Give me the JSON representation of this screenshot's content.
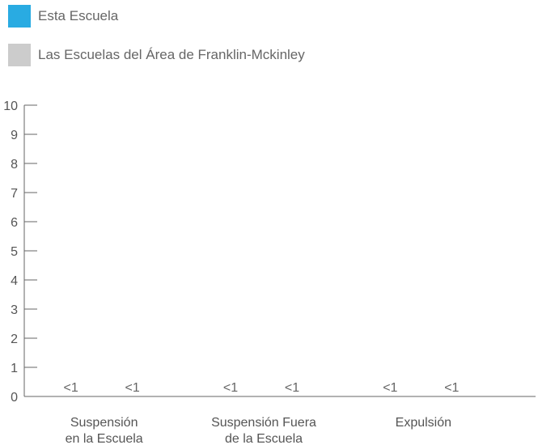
{
  "legend": [
    {
      "label": "Esta Escuela",
      "color": "#29abe2"
    },
    {
      "label": "Las Escuelas del Área de Franklin-Mckinley",
      "color": "#cccccc"
    }
  ],
  "chart_data": {
    "type": "bar",
    "categories": [
      [
        "Suspensión",
        "en la Escuela"
      ],
      [
        "Suspensión Fuera",
        "de la Escuela"
      ],
      [
        "Expulsión"
      ]
    ],
    "series": [
      {
        "name": "Esta Escuela",
        "color": "#29abe2",
        "values": [
          0,
          0,
          0
        ],
        "labels": [
          "<1",
          "<1",
          "<1"
        ]
      },
      {
        "name": "Las Escuelas del Área de Franklin-Mckinley",
        "color": "#cccccc",
        "values": [
          0,
          0,
          0
        ],
        "labels": [
          "<1",
          "<1",
          "<1"
        ]
      }
    ],
    "yticks": [
      0,
      1,
      2,
      3,
      4,
      5,
      6,
      7,
      8,
      9,
      10
    ],
    "ylim": [
      0,
      10
    ],
    "grid": false,
    "legend_position": "top-left"
  }
}
